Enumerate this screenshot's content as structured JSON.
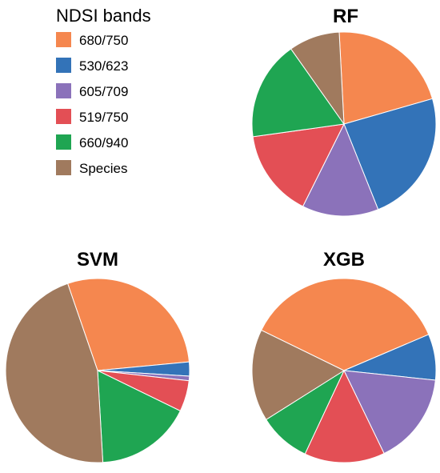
{
  "legend": {
    "title": "NDSI bands"
  },
  "series_colors": {
    "680/750": "#F5874F",
    "530/623": "#3373B8",
    "605/709": "#8B72BA",
    "519/750": "#E34F55",
    "660/940": "#1FA552",
    "Species": "#A07A5E"
  },
  "chart_data": [
    {
      "type": "pie",
      "title": "RF",
      "categories": [
        "680/750",
        "530/623",
        "605/709",
        "519/750",
        "660/940",
        "Species"
      ],
      "values": [
        21.5,
        23.5,
        13.5,
        15.5,
        17.5,
        9.0
      ],
      "start_angle_deg": 93,
      "legend": "top-left"
    },
    {
      "type": "pie",
      "title": "SVM",
      "categories": [
        "680/750",
        "530/623",
        "605/709",
        "519/750",
        "660/940",
        "Species"
      ],
      "values": [
        29.0,
        2.5,
        0.8,
        5.5,
        17.0,
        46.0
      ],
      "start_angle_deg": 109
    },
    {
      "type": "pie",
      "title": "XGB",
      "categories": [
        "680/750",
        "530/623",
        "605/709",
        "519/750",
        "660/940",
        "Species"
      ],
      "values": [
        36.0,
        8.0,
        16.0,
        14.0,
        9.0,
        16.0
      ],
      "start_angle_deg": 154
    }
  ]
}
